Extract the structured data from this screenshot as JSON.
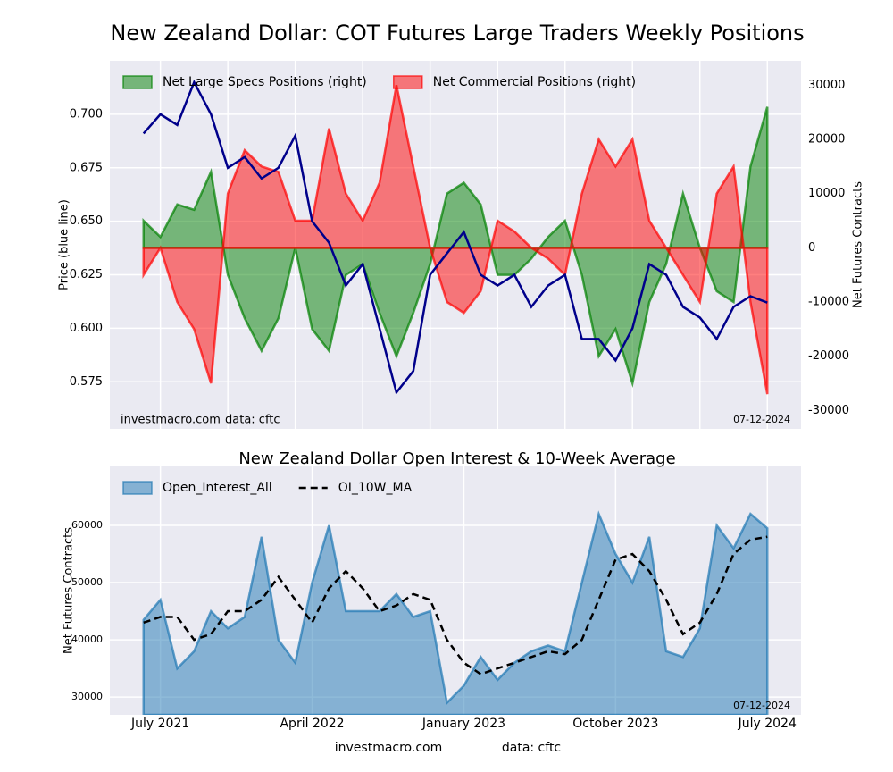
{
  "title": "New Zealand Dollar: COT Futures Large Traders Weekly Positions",
  "footer": {
    "site": "investmacro.com",
    "data": "data: cftc",
    "date": "07-12-2024"
  },
  "chart_data": [
    {
      "type": "combo",
      "ylabel": "Price (blue line)",
      "y2label": "Net Futures Contracts",
      "x": [
        "2021-06",
        "2021-07",
        "2021-08",
        "2021-09",
        "2021-10",
        "2021-11",
        "2021-12",
        "2022-01",
        "2022-02",
        "2022-03",
        "2022-04",
        "2022-05",
        "2022-06",
        "2022-07",
        "2022-08",
        "2022-09",
        "2022-10",
        "2022-11",
        "2022-12",
        "2023-01",
        "2023-02",
        "2023-03",
        "2023-04",
        "2023-05",
        "2023-06",
        "2023-07",
        "2023-08",
        "2023-09",
        "2023-10",
        "2023-11",
        "2023-12",
        "2024-01",
        "2024-02",
        "2024-03",
        "2024-04",
        "2024-05",
        "2024-06",
        "2024-07"
      ],
      "xlim": [
        "2021-04",
        "2024-09"
      ],
      "xticks": [
        "2021-07",
        "2021-11",
        "2022-03",
        "2022-07",
        "2022-11",
        "2023-03",
        "2023-07",
        "2023-11",
        "2024-03",
        "2024-07"
      ],
      "ylim": [
        0.553,
        0.725
      ],
      "yticks": [
        0.575,
        {
          "value": 0.6,
          "label": "0.600"
        },
        0.625,
        {
          "value": 0.65,
          "label": "0.650"
        },
        0.675,
        {
          "value": 0.7,
          "label": "0.700"
        }
      ],
      "y2lim": [
        -33400,
        34500
      ],
      "y2ticks": [
        -30000,
        -20000,
        -10000,
        0,
        10000,
        20000,
        30000
      ],
      "grid": true,
      "legend": "upper left",
      "series": [
        {
          "name": "Net Large Specs Positions (right)",
          "type": "area",
          "axis": "y2",
          "color": "#008000",
          "values": [
            5000,
            2000,
            8000,
            7000,
            14000,
            -5000,
            -13000,
            -19000,
            -13000,
            0,
            -15000,
            -19000,
            -5000,
            -3000,
            -12000,
            -20000,
            -12000,
            -3000,
            10000,
            12000,
            8000,
            -5000,
            -5000,
            -2000,
            2000,
            5000,
            -5000,
            -20000,
            -15000,
            -25000,
            -10000,
            -3000,
            10000,
            0,
            -8000,
            -10000,
            15000,
            26000
          ]
        },
        {
          "name": "Net Commercial Positions (right)",
          "type": "area",
          "axis": "y2",
          "color": "#ff0000",
          "values": [
            -5000,
            0,
            -10000,
            -15000,
            -25000,
            10000,
            18000,
            15000,
            14000,
            5000,
            5000,
            22000,
            10000,
            5000,
            12000,
            30000,
            15000,
            0,
            -10000,
            -12000,
            -8000,
            5000,
            3000,
            0,
            -2000,
            -5000,
            10000,
            20000,
            15000,
            20000,
            5000,
            0,
            -5000,
            -10000,
            10000,
            15000,
            -10000,
            -27000
          ]
        },
        {
          "type": "line",
          "color": "#00008b",
          "values": [
            0.691,
            0.7,
            0.695,
            0.715,
            0.7,
            0.675,
            0.68,
            0.67,
            0.675,
            0.69,
            0.65,
            0.64,
            0.62,
            0.63,
            0.6,
            0.57,
            0.58,
            0.625,
            0.635,
            0.645,
            0.625,
            0.62,
            0.625,
            0.61,
            0.62,
            0.625,
            0.595,
            0.595,
            0.585,
            0.6,
            0.63,
            0.625,
            0.61,
            0.605,
            0.595,
            0.61,
            0.615,
            0.612
          ]
        }
      ]
    },
    {
      "type": "combo",
      "title": "New Zealand Dollar Open Interest & 10-Week Average",
      "ylabel": "Net Futures Contracts",
      "x": [
        "2021-06",
        "2021-07",
        "2021-08",
        "2021-09",
        "2021-10",
        "2021-11",
        "2021-12",
        "2022-01",
        "2022-02",
        "2022-03",
        "2022-04",
        "2022-05",
        "2022-06",
        "2022-07",
        "2022-08",
        "2022-09",
        "2022-10",
        "2022-11",
        "2022-12",
        "2023-01",
        "2023-02",
        "2023-03",
        "2023-04",
        "2023-05",
        "2023-06",
        "2023-07",
        "2023-08",
        "2023-09",
        "2023-10",
        "2023-11",
        "2023-12",
        "2024-01",
        "2024-02",
        "2024-03",
        "2024-04",
        "2024-05",
        "2024-06",
        "2024-07"
      ],
      "xlim": [
        "2021-04",
        "2024-09"
      ],
      "xticks": [
        {
          "value": "2021-07",
          "label": "July 2021"
        },
        {
          "value": "2022-04",
          "label": "April 2022"
        },
        {
          "value": "2023-01",
          "label": "January 2023"
        },
        {
          "value": "2023-10",
          "label": "October 2023"
        },
        {
          "value": "2024-07",
          "label": "July 2024"
        }
      ],
      "ylim": [
        26900,
        70300
      ],
      "yticks": [
        30000,
        40000,
        50000,
        60000
      ],
      "grid": true,
      "legend": "upper left",
      "series": [
        {
          "name": "Open_Interest_All",
          "type": "area",
          "color": "#1f77b4",
          "values": [
            43500,
            47000,
            35000,
            38000,
            45000,
            42000,
            44000,
            58000,
            40000,
            36000,
            50000,
            60000,
            45000,
            45000,
            45000,
            48000,
            44000,
            45000,
            29000,
            32000,
            37000,
            33000,
            36000,
            38000,
            39000,
            38000,
            50000,
            62000,
            55000,
            50000,
            58000,
            38000,
            37000,
            42000,
            60000,
            56000,
            62000,
            59500
          ]
        },
        {
          "name": "OI_10W_MA",
          "type": "line",
          "style": "dashed",
          "color": "#000000",
          "values": [
            43000,
            44000,
            44000,
            40000,
            41000,
            45000,
            45000,
            47000,
            51000,
            47000,
            43000,
            49000,
            52000,
            49000,
            45000,
            46000,
            48000,
            47000,
            40000,
            36000,
            34000,
            35000,
            36000,
            37000,
            38000,
            37500,
            40000,
            47000,
            54000,
            55000,
            52000,
            47000,
            41000,
            43000,
            48000,
            55000,
            57500,
            58000
          ]
        }
      ]
    }
  ]
}
